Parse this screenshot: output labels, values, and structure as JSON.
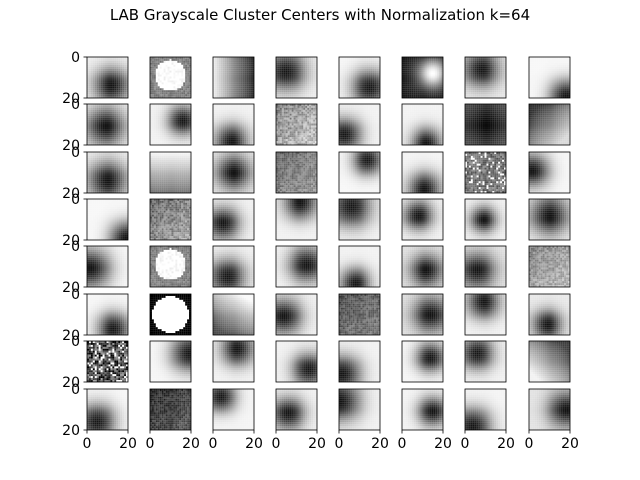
{
  "figure": {
    "title": "LAB Grayscale Cluster Centers with Normalization k=64"
  },
  "chart_data": {
    "type": "heatmap",
    "title": "LAB Grayscale Cluster Centers with Normalization k=64",
    "layout": {
      "rows": 8,
      "cols": 8,
      "panel_count": 64
    },
    "panel_x_ticks": [
      0,
      20
    ],
    "panel_y_ticks": [
      0,
      20
    ],
    "panel_xlim": [
      0,
      20
    ],
    "panel_ylim": [
      20,
      0
    ],
    "y_ticks_shown_on": "every panel in first column",
    "x_ticks_shown_on": "bottom panel of each column",
    "colormap": "gray",
    "grid": false,
    "panels": [
      {
        "type": "blob",
        "cx": 0.6,
        "cy": 0.7,
        "r": 0.55,
        "dark": true,
        "bg": 0.95
      },
      {
        "type": "circle",
        "cx": 0.5,
        "cy": 0.45,
        "r": 0.38,
        "fg": 1.0,
        "bg": 0.5,
        "noise": 0.15
      },
      {
        "type": "grad",
        "angle": 180,
        "lo": 0.15,
        "hi": 0.95
      },
      {
        "type": "blob",
        "cx": 0.25,
        "cy": 0.35,
        "r": 0.6,
        "dark": true,
        "bg": 0.95
      },
      {
        "type": "blob",
        "cx": 0.75,
        "cy": 0.75,
        "r": 0.55,
        "dark": true,
        "bg": 0.97
      },
      {
        "type": "blob",
        "cx": 0.75,
        "cy": 0.4,
        "r": 0.45,
        "dark": false,
        "bg": 0.1
      },
      {
        "type": "blob",
        "cx": 0.4,
        "cy": 0.3,
        "r": 0.55,
        "dark": true,
        "bg": 0.92
      },
      {
        "type": "blob",
        "cx": 0.9,
        "cy": 0.95,
        "r": 0.5,
        "dark": true,
        "bg": 0.97
      },
      {
        "type": "blob",
        "cx": 0.45,
        "cy": 0.55,
        "r": 0.6,
        "dark": true,
        "bg": 0.95
      },
      {
        "type": "blob",
        "cx": 0.8,
        "cy": 0.4,
        "r": 0.45,
        "dark": true,
        "bg": 0.95
      },
      {
        "type": "blob",
        "cx": 0.45,
        "cy": 0.9,
        "r": 0.5,
        "dark": true,
        "bg": 0.95
      },
      {
        "type": "noisy",
        "lo": 0.35,
        "hi": 0.95
      },
      {
        "type": "blob",
        "cx": 0.15,
        "cy": 0.75,
        "r": 0.5,
        "dark": true,
        "bg": 0.95
      },
      {
        "type": "blob",
        "cx": 0.6,
        "cy": 0.95,
        "r": 0.45,
        "dark": true,
        "bg": 0.95
      },
      {
        "type": "blob",
        "cx": 0.5,
        "cy": 0.5,
        "r": 0.9,
        "dark": true,
        "bg": 0.55
      },
      {
        "type": "grad",
        "angle": 45,
        "lo": 0.2,
        "hi": 0.85
      },
      {
        "type": "blob",
        "cx": 0.5,
        "cy": 0.7,
        "r": 0.6,
        "dark": true,
        "bg": 0.95
      },
      {
        "type": "grad",
        "angle": 270,
        "lo": 0.45,
        "hi": 0.98
      },
      {
        "type": "blob",
        "cx": 0.5,
        "cy": 0.5,
        "r": 0.55,
        "dark": true,
        "bg": 0.95
      },
      {
        "type": "noisy",
        "lo": 0.3,
        "hi": 0.7
      },
      {
        "type": "blob",
        "cx": 0.7,
        "cy": 0.2,
        "r": 0.45,
        "dark": true,
        "bg": 0.97
      },
      {
        "type": "blob",
        "cx": 0.55,
        "cy": 0.9,
        "r": 0.5,
        "dark": true,
        "bg": 0.96
      },
      {
        "type": "speck",
        "bg": 0.45,
        "noise": 0.3
      },
      {
        "type": "blob",
        "cx": 0.1,
        "cy": 0.45,
        "r": 0.5,
        "dark": true,
        "bg": 0.97
      },
      {
        "type": "blob",
        "cx": 0.95,
        "cy": 0.95,
        "r": 0.5,
        "dark": true,
        "bg": 0.97
      },
      {
        "type": "noisy",
        "lo": 0.25,
        "hi": 0.8
      },
      {
        "type": "blob",
        "cx": 0.25,
        "cy": 0.6,
        "r": 0.5,
        "dark": true,
        "bg": 0.95
      },
      {
        "type": "blob",
        "cx": 0.6,
        "cy": 0.1,
        "r": 0.5,
        "dark": true,
        "bg": 0.95
      },
      {
        "type": "blob",
        "cx": 0.3,
        "cy": 0.2,
        "r": 0.6,
        "dark": true,
        "bg": 0.95
      },
      {
        "type": "blob",
        "cx": 0.4,
        "cy": 0.4,
        "r": 0.45,
        "dark": true,
        "bg": 0.95
      },
      {
        "type": "blob",
        "cx": 0.45,
        "cy": 0.5,
        "r": 0.4,
        "dark": true,
        "bg": 0.95
      },
      {
        "type": "blob",
        "cx": 0.5,
        "cy": 0.4,
        "r": 0.6,
        "dark": true,
        "bg": 0.95
      },
      {
        "type": "blob",
        "cx": 0.1,
        "cy": 0.55,
        "r": 0.6,
        "dark": true,
        "bg": 0.97
      },
      {
        "type": "circle",
        "cx": 0.5,
        "cy": 0.45,
        "r": 0.38,
        "fg": 1.0,
        "bg": 0.5,
        "noise": 0.15
      },
      {
        "type": "blob",
        "cx": 0.35,
        "cy": 0.75,
        "r": 0.55,
        "dark": true,
        "bg": 0.95
      },
      {
        "type": "blob",
        "cx": 0.75,
        "cy": 0.45,
        "r": 0.55,
        "dark": true,
        "bg": 0.96
      },
      {
        "type": "blob",
        "cx": 0.4,
        "cy": 0.9,
        "r": 0.45,
        "dark": true,
        "bg": 0.95
      },
      {
        "type": "blob",
        "cx": 0.6,
        "cy": 0.6,
        "r": 0.5,
        "dark": true,
        "bg": 0.9
      },
      {
        "type": "blob",
        "cx": 0.3,
        "cy": 0.6,
        "r": 0.55,
        "dark": true,
        "bg": 0.9
      },
      {
        "type": "noisy",
        "lo": 0.4,
        "hi": 0.85
      },
      {
        "type": "blob",
        "cx": 0.65,
        "cy": 0.85,
        "r": 0.5,
        "dark": true,
        "bg": 0.97
      },
      {
        "type": "circle",
        "cx": 0.5,
        "cy": 0.5,
        "r": 0.44,
        "fg": 1.0,
        "bg": 0.0,
        "noise": 0.0
      },
      {
        "type": "grad",
        "angle": 300,
        "lo": 0.3,
        "hi": 0.98
      },
      {
        "type": "blob",
        "cx": 0.2,
        "cy": 0.55,
        "r": 0.55,
        "dark": true,
        "bg": 0.95
      },
      {
        "type": "noisy",
        "lo": 0.2,
        "hi": 0.6
      },
      {
        "type": "blob",
        "cx": 0.7,
        "cy": 0.5,
        "r": 0.55,
        "dark": true,
        "bg": 0.9
      },
      {
        "type": "blob",
        "cx": 0.45,
        "cy": 0.2,
        "r": 0.5,
        "dark": true,
        "bg": 0.95
      },
      {
        "type": "blob",
        "cx": 0.45,
        "cy": 0.75,
        "r": 0.45,
        "dark": true,
        "bg": 0.92
      },
      {
        "type": "speck",
        "bg": 0.3,
        "noise": 0.7
      },
      {
        "type": "blob",
        "cx": 0.95,
        "cy": 0.3,
        "r": 0.55,
        "dark": true,
        "bg": 0.97
      },
      {
        "type": "blob",
        "cx": 0.6,
        "cy": 0.2,
        "r": 0.5,
        "dark": true,
        "bg": 0.95
      },
      {
        "type": "blob",
        "cx": 0.8,
        "cy": 0.7,
        "r": 0.5,
        "dark": true,
        "bg": 0.95
      },
      {
        "type": "blob",
        "cx": 0.1,
        "cy": 0.8,
        "r": 0.55,
        "dark": true,
        "bg": 0.95
      },
      {
        "type": "blob",
        "cx": 0.7,
        "cy": 0.4,
        "r": 0.45,
        "dark": true,
        "bg": 0.97
      },
      {
        "type": "blob",
        "cx": 0.3,
        "cy": 0.3,
        "r": 0.5,
        "dark": true,
        "bg": 0.95
      },
      {
        "type": "grad",
        "angle": 135,
        "lo": 0.25,
        "hi": 0.95
      },
      {
        "type": "blob",
        "cx": 0.25,
        "cy": 0.8,
        "r": 0.55,
        "dark": true,
        "bg": 0.97
      },
      {
        "type": "noisy",
        "lo": 0.05,
        "hi": 0.45
      },
      {
        "type": "blob",
        "cx": 0.2,
        "cy": 0.2,
        "r": 0.45,
        "dark": true,
        "bg": 0.96
      },
      {
        "type": "blob",
        "cx": 0.3,
        "cy": 0.6,
        "r": 0.5,
        "dark": true,
        "bg": 0.95
      },
      {
        "type": "blob",
        "cx": 0.05,
        "cy": 0.3,
        "r": 0.6,
        "dark": true,
        "bg": 0.95
      },
      {
        "type": "blob",
        "cx": 0.75,
        "cy": 0.55,
        "r": 0.45,
        "dark": true,
        "bg": 0.96
      },
      {
        "type": "blob",
        "cx": 0.2,
        "cy": 0.9,
        "r": 0.55,
        "dark": true,
        "bg": 0.96
      },
      {
        "type": "blob",
        "cx": 0.9,
        "cy": 0.5,
        "r": 0.55,
        "dark": true,
        "bg": 0.9
      }
    ]
  }
}
